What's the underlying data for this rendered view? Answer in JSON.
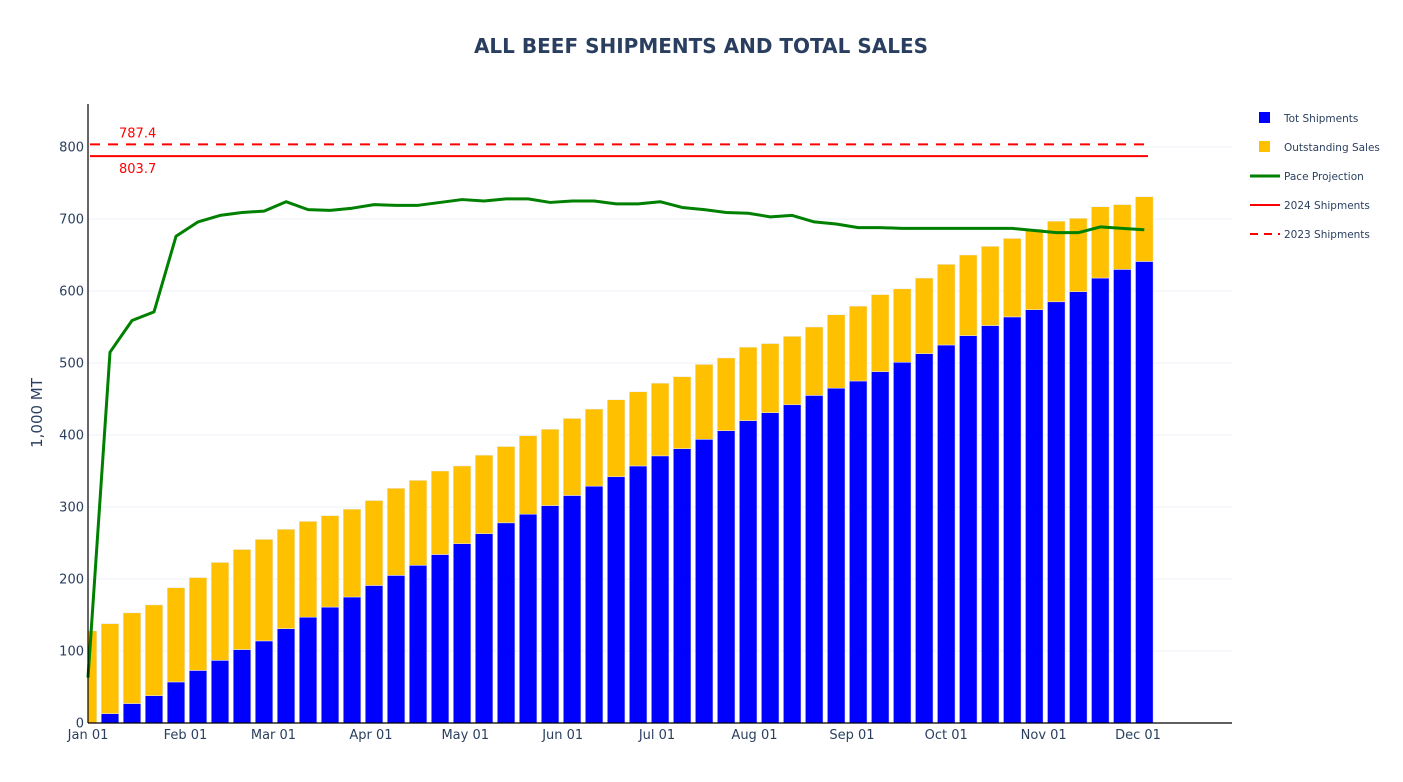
{
  "chart_data": {
    "type": "bar",
    "title": "ALL BEEF SHIPMENTS AND TOTAL SALES",
    "xlabel": "",
    "ylabel": "1,000 MT",
    "ylim": [
      0,
      860
    ],
    "y_ticks": [
      0,
      100,
      200,
      300,
      400,
      500,
      600,
      700,
      800
    ],
    "x_tick_labels": [
      "Jan 01",
      "Feb 01",
      "Mar 01",
      "Apr 01",
      "May 01",
      "Jun 01",
      "Jul 01",
      "Aug 01",
      "Sep 01",
      "Oct 01",
      "Nov 01",
      "Dec 01"
    ],
    "x_tick_days": [
      0,
      31,
      59,
      90,
      120,
      151,
      181,
      212,
      243,
      273,
      304,
      334
    ],
    "x_range_days": [
      0,
      364
    ],
    "bar_interval_days": 7,
    "barmode": "stack",
    "grid": true,
    "legend_position": "top-right",
    "series": [
      {
        "name": "Tot Shipments",
        "type": "bar",
        "color": "#0000ff",
        "values": [
          0,
          13,
          27,
          38,
          57,
          73,
          87,
          102,
          114,
          131,
          147,
          161,
          175,
          191,
          205,
          219,
          234,
          249,
          263,
          278,
          290,
          302,
          316,
          329,
          342,
          357,
          371,
          381,
          394,
          406,
          420,
          431,
          442,
          455,
          465,
          475,
          488,
          501,
          513,
          525,
          538,
          552,
          564,
          574,
          585,
          599,
          618,
          630,
          641
        ]
      },
      {
        "name": "Outstanding Sales",
        "type": "bar",
        "color": "#ffc000",
        "values": [
          128,
          125,
          126,
          126,
          131,
          129,
          136,
          139,
          141,
          138,
          133,
          127,
          122,
          118,
          121,
          118,
          116,
          108,
          109,
          106,
          109,
          106,
          107,
          107,
          107,
          103,
          101,
          100,
          104,
          101,
          102,
          96,
          95,
          95,
          102,
          104,
          107,
          102,
          105,
          112,
          112,
          110,
          109,
          112,
          112,
          102,
          99,
          90,
          90
        ]
      },
      {
        "name": "Pace Projection",
        "type": "line",
        "color": "#008000",
        "values": [
          63,
          515,
          559,
          571,
          676,
          696,
          705,
          709,
          711,
          724,
          713,
          712,
          715,
          720,
          719,
          719,
          723,
          727,
          725,
          728,
          728,
          723,
          725,
          725,
          721,
          721,
          724,
          716,
          713,
          709,
          708,
          703,
          705,
          696,
          693,
          688,
          688,
          687,
          687,
          687,
          687,
          687,
          687,
          684,
          681,
          681,
          689,
          687,
          685
        ]
      },
      {
        "name": "2024 Shipments",
        "type": "hline",
        "color": "#ff0000",
        "dash": "solid",
        "value": 787.4
      },
      {
        "name": "2023 Shipments",
        "type": "hline",
        "color": "#ff0000",
        "dash": "dash",
        "value": 803.7
      }
    ],
    "annotations": [
      {
        "text": "787.4",
        "anchor_value": 803.7,
        "position": "above"
      },
      {
        "text": "803.7",
        "anchor_value": 787.4,
        "position": "below"
      }
    ]
  }
}
